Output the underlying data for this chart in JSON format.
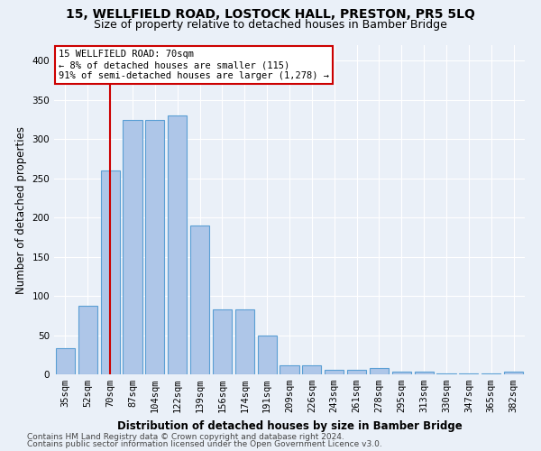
{
  "title1": "15, WELLFIELD ROAD, LOSTOCK HALL, PRESTON, PR5 5LQ",
  "title2": "Size of property relative to detached houses in Bamber Bridge",
  "xlabel": "Distribution of detached houses by size in Bamber Bridge",
  "ylabel": "Number of detached properties",
  "categories": [
    "35sqm",
    "52sqm",
    "70sqm",
    "87sqm",
    "104sqm",
    "122sqm",
    "139sqm",
    "156sqm",
    "174sqm",
    "191sqm",
    "209sqm",
    "226sqm",
    "243sqm",
    "261sqm",
    "278sqm",
    "295sqm",
    "313sqm",
    "330sqm",
    "347sqm",
    "365sqm",
    "382sqm"
  ],
  "values": [
    33,
    88,
    260,
    325,
    325,
    330,
    190,
    83,
    83,
    50,
    11,
    11,
    6,
    6,
    8,
    3,
    3,
    1,
    1,
    1,
    3
  ],
  "bar_color": "#aec6e8",
  "bar_edge_color": "#5a9fd4",
  "highlight_index": 2,
  "highlight_line_color": "#cc0000",
  "annotation_text": "15 WELLFIELD ROAD: 70sqm\n← 8% of detached houses are smaller (115)\n91% of semi-detached houses are larger (1,278) →",
  "annotation_box_color": "#ffffff",
  "annotation_box_edge_color": "#cc0000",
  "ylim": [
    0,
    420
  ],
  "yticks": [
    0,
    50,
    100,
    150,
    200,
    250,
    300,
    350,
    400
  ],
  "footer1": "Contains HM Land Registry data © Crown copyright and database right 2024.",
  "footer2": "Contains public sector information licensed under the Open Government Licence v3.0.",
  "background_color": "#eaf0f8",
  "plot_background_color": "#eaf0f8",
  "grid_color": "#ffffff",
  "title1_fontsize": 10,
  "title2_fontsize": 9,
  "xlabel_fontsize": 8.5,
  "ylabel_fontsize": 8.5,
  "tick_fontsize": 7.5,
  "footer_fontsize": 6.5
}
